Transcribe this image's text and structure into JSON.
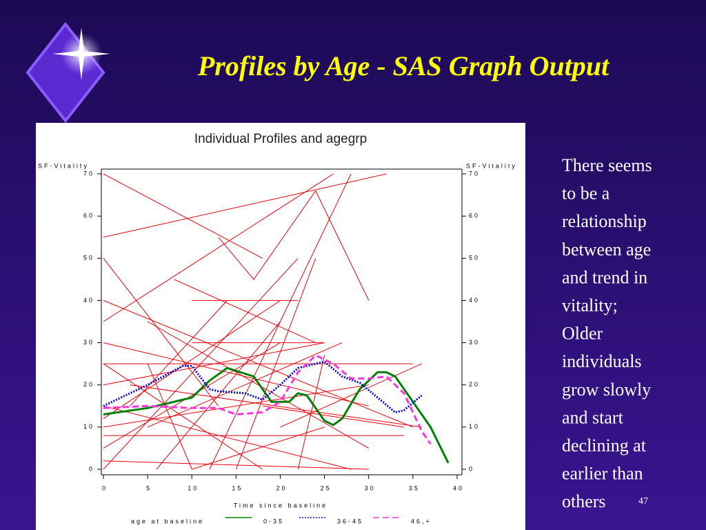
{
  "slide": {
    "title": "Profiles by Age - SAS Graph Output",
    "text": [
      "There seems",
      "to be a",
      "relationship",
      "between age",
      "and trend in",
      "vitality;",
      "Older",
      "individuals",
      "grow slowly",
      "and start",
      "declining at",
      "earlier than",
      "others"
    ],
    "page_number": "47"
  },
  "chart_data": {
    "type": "line",
    "title": "Individual Profiles and agegrp",
    "y_label": "SF-Vitality",
    "x_label": "Time since baseline",
    "legend_title": "age at baseline",
    "xlim": [
      0,
      40
    ],
    "ylim": [
      0,
      70
    ],
    "xticks": [
      0,
      5,
      10,
      15,
      20,
      25,
      30,
      35,
      40
    ],
    "yticks": [
      0,
      10,
      20,
      30,
      40,
      50,
      60,
      70
    ],
    "profiles": {
      "color": "#e8000b",
      "lines": [
        {
          "x": [
            0,
            18
          ],
          "values": [
            70,
            50
          ]
        },
        {
          "x": [
            0,
            32
          ],
          "values": [
            55,
            70
          ]
        },
        {
          "x": [
            0,
            26
          ],
          "values": [
            35,
            70
          ]
        },
        {
          "x": [
            0,
            13
          ],
          "values": [
            50,
            15
          ]
        },
        {
          "x": [
            13,
            17,
            24,
            30
          ],
          "values": [
            55,
            45,
            66,
            40
          ]
        },
        {
          "x": [
            8,
            24
          ],
          "values": [
            45,
            30
          ]
        },
        {
          "x": [
            0,
            35
          ],
          "values": [
            25,
            25
          ]
        },
        {
          "x": [
            0,
            25
          ],
          "values": [
            20,
            30
          ]
        },
        {
          "x": [
            0,
            30
          ],
          "values": [
            10,
            20
          ]
        },
        {
          "x": [
            0,
            28
          ],
          "values": [
            15,
            0
          ]
        },
        {
          "x": [
            0,
            20
          ],
          "values": [
            5,
            30
          ]
        },
        {
          "x": [
            0,
            22
          ],
          "values": [
            0,
            50
          ]
        },
        {
          "x": [
            5,
            30
          ],
          "values": [
            35,
            5
          ]
        },
        {
          "x": [
            0,
            30
          ],
          "values": [
            30,
            15
          ]
        },
        {
          "x": [
            3,
            36
          ],
          "values": [
            20,
            10
          ]
        },
        {
          "x": [
            10,
            22
          ],
          "values": [
            40,
            40
          ]
        },
        {
          "x": [
            10,
            25
          ],
          "values": [
            30,
            30
          ]
        },
        {
          "x": [
            0,
            30
          ],
          "values": [
            2,
            0
          ]
        },
        {
          "x": [
            5,
            27
          ],
          "values": [
            10,
            30
          ]
        },
        {
          "x": [
            15,
            24
          ],
          "values": [
            0,
            50
          ]
        },
        {
          "x": [
            10,
            25
          ],
          "values": [
            0,
            10
          ]
        },
        {
          "x": [
            0,
            20
          ],
          "values": [
            12,
            40
          ]
        },
        {
          "x": [
            5,
            10
          ],
          "values": [
            25,
            0
          ]
        },
        {
          "x": [
            0,
            34
          ],
          "values": [
            8,
            8
          ]
        },
        {
          "x": [
            20,
            36
          ],
          "values": [
            10,
            25
          ]
        },
        {
          "x": [
            22,
            25
          ],
          "values": [
            0,
            27
          ]
        },
        {
          "x": [
            0,
            35
          ],
          "values": [
            40,
            10
          ]
        },
        {
          "x": [
            12,
            28
          ],
          "values": [
            0,
            70
          ]
        },
        {
          "x": [
            18,
            34
          ],
          "values": [
            15,
            10
          ]
        },
        {
          "x": [
            0,
            18
          ],
          "values": [
            25,
            0
          ]
        },
        {
          "x": [
            6,
            20
          ],
          "values": [
            0,
            35
          ]
        },
        {
          "x": [
            3,
            14
          ],
          "values": [
            15,
            40
          ]
        }
      ]
    },
    "series": [
      {
        "name": "0-35",
        "color": "#008000",
        "dash": "none",
        "x": [
          0,
          5,
          10,
          12,
          14,
          17,
          19,
          21,
          22,
          23,
          25,
          26,
          27,
          29,
          31,
          32,
          33,
          35,
          37,
          39
        ],
        "values": [
          13,
          14.5,
          17,
          21,
          24,
          22,
          16,
          16,
          18,
          17.5,
          11.5,
          10.5,
          12,
          19,
          23,
          23,
          22,
          16,
          10,
          1.5
        ]
      },
      {
        "name": "36-45",
        "color": "#0000dd",
        "dash": "2,2",
        "x": [
          0,
          5,
          9,
          10,
          12,
          13,
          16,
          18,
          20,
          22,
          25,
          27,
          29,
          31,
          33,
          34,
          36
        ],
        "values": [
          15,
          20,
          24.5,
          24.5,
          19,
          18.5,
          18,
          16.5,
          20,
          24,
          25.5,
          22,
          20.5,
          17,
          13.5,
          14,
          17.5
        ]
      },
      {
        "name": "46,+",
        "color": "#ff33dd",
        "dash": "9,5",
        "x": [
          0,
          5,
          10,
          13,
          15,
          18,
          20,
          22,
          24,
          26,
          28,
          30,
          32,
          34,
          36,
          37
        ],
        "values": [
          14.5,
          15,
          14.5,
          14.5,
          13,
          13.5,
          16,
          23,
          27,
          25,
          21.5,
          21.5,
          22,
          18,
          9,
          6
        ]
      }
    ]
  }
}
